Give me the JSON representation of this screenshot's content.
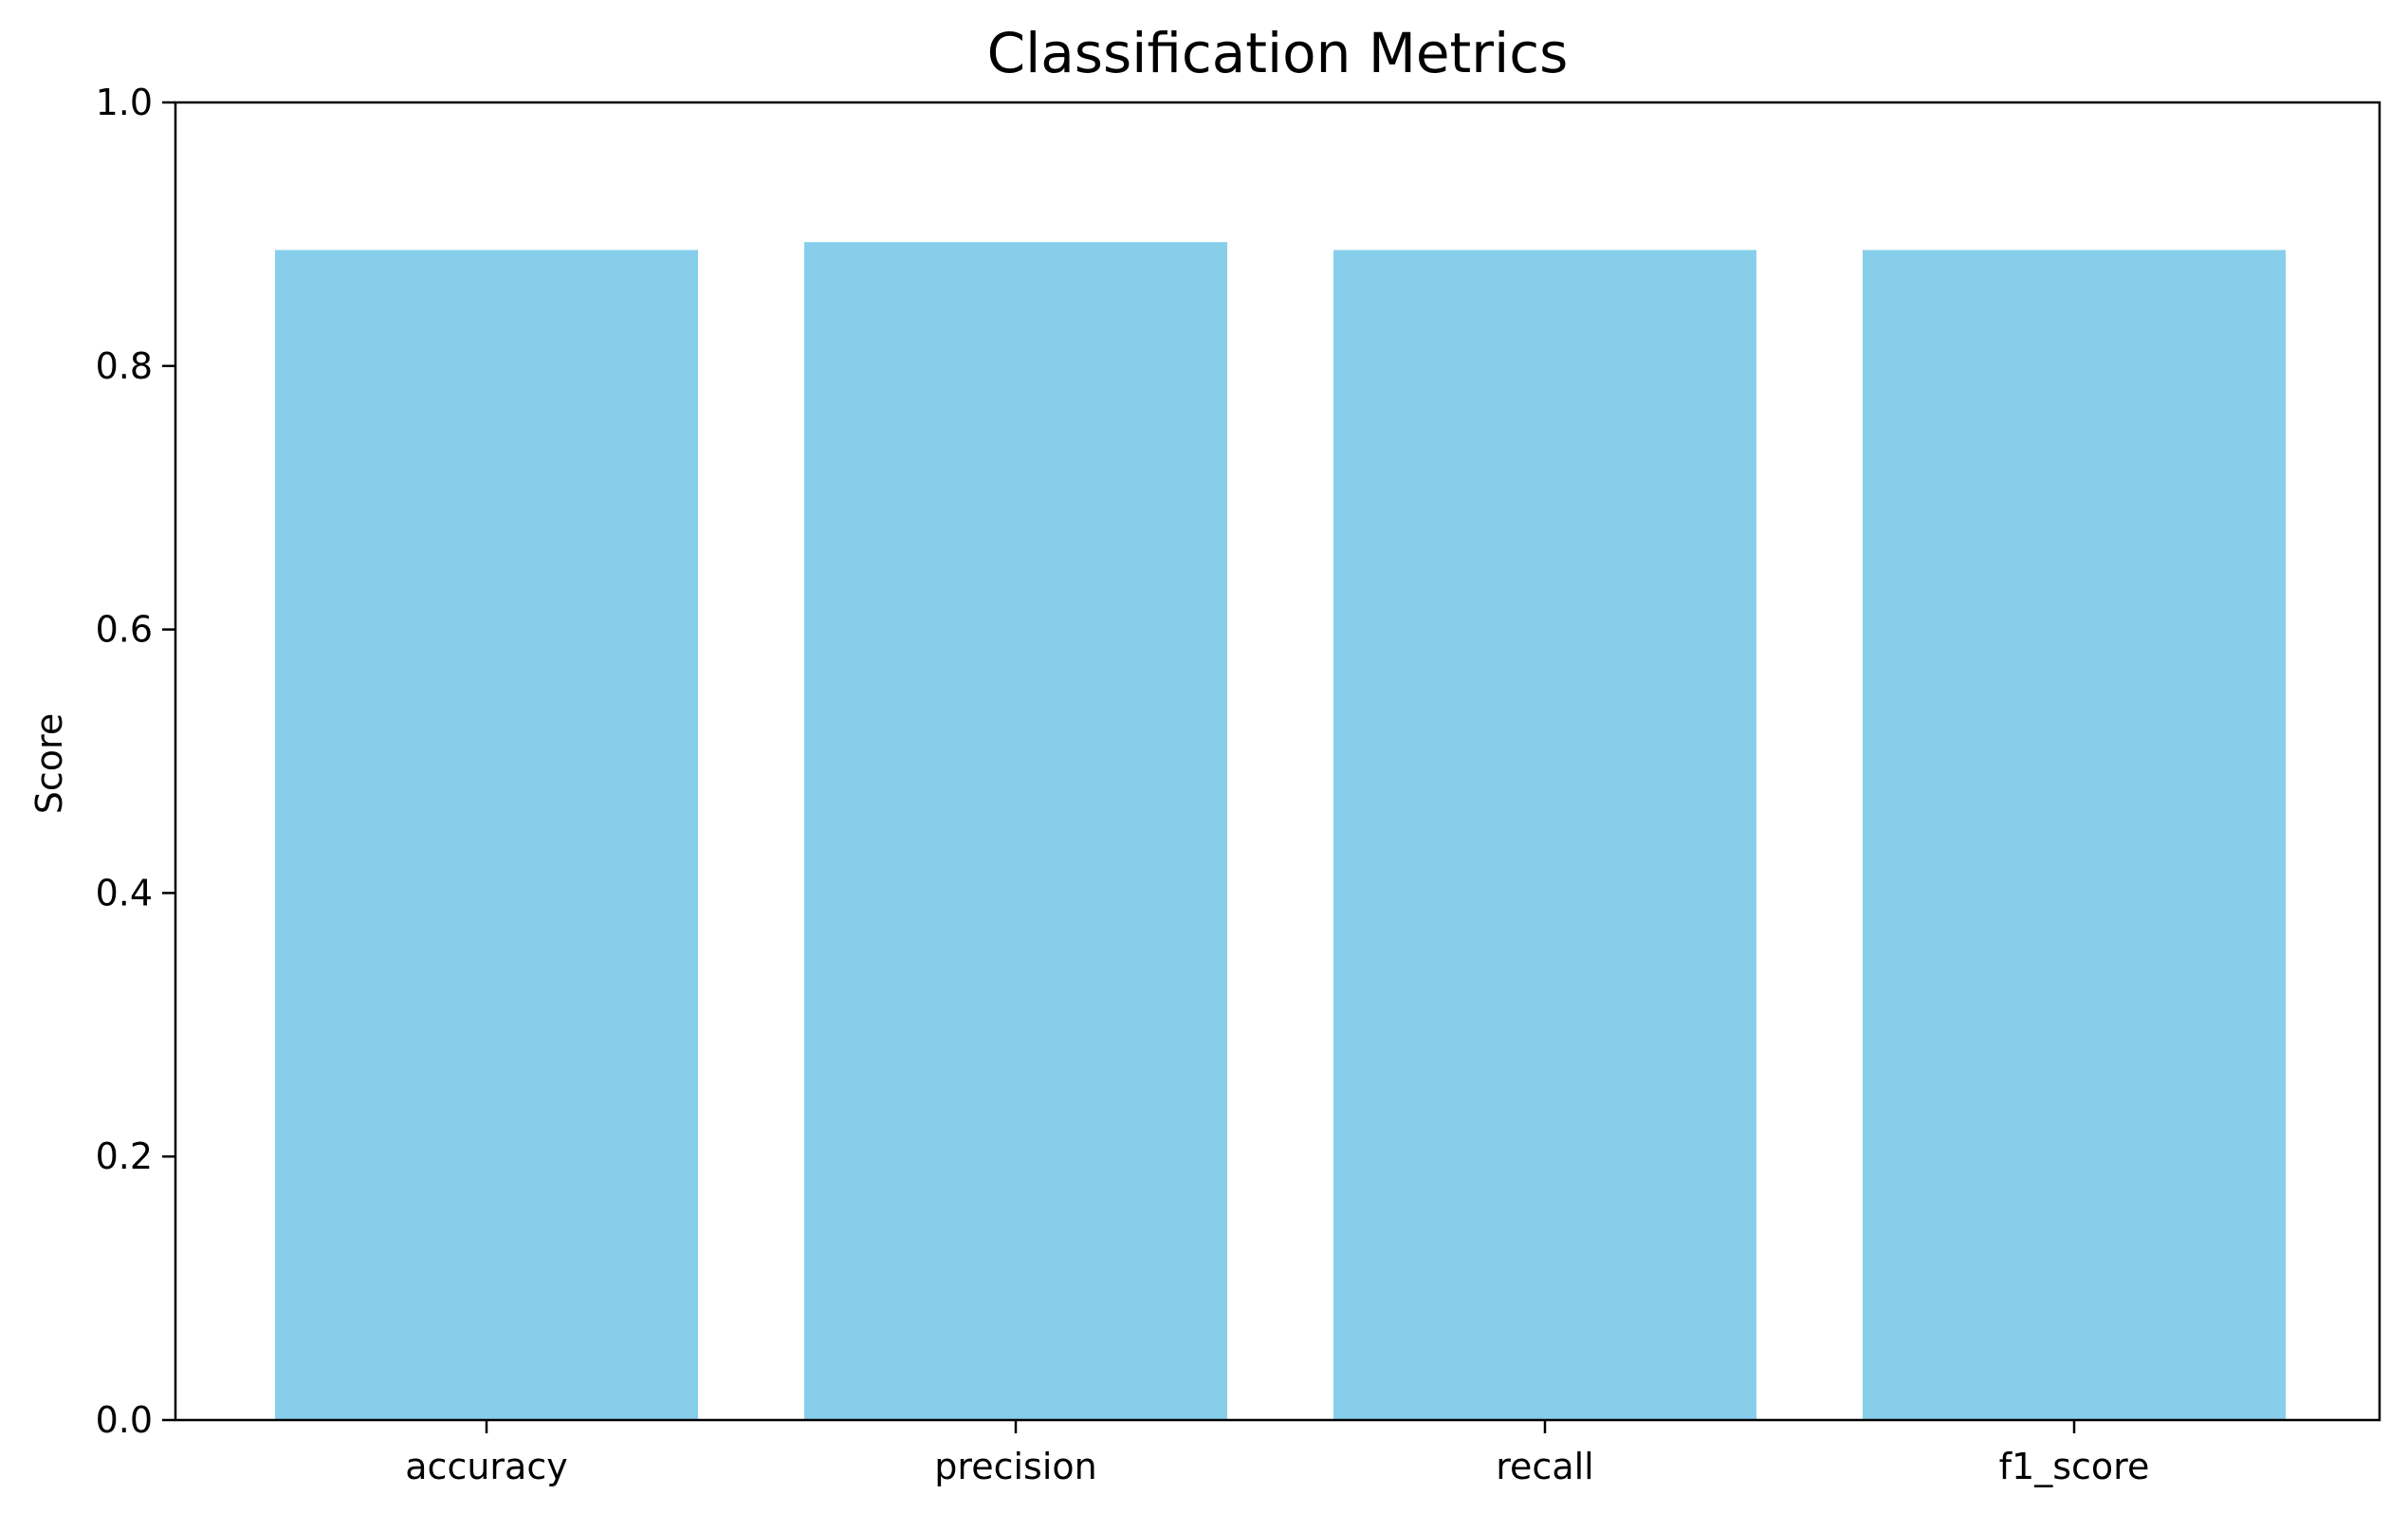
{
  "chart_data": {
    "type": "bar",
    "title": "Classification Metrics",
    "xlabel": "",
    "ylabel": "Score",
    "categories": [
      "accuracy",
      "precision",
      "recall",
      "f1_score"
    ],
    "values": [
      0.888,
      0.894,
      0.888,
      0.888
    ],
    "ylim": [
      0,
      1.0
    ],
    "yticks": [
      "0.0",
      "0.2",
      "0.4",
      "0.6",
      "0.8",
      "1.0"
    ],
    "grid": false,
    "bar_color": "#87CEEB"
  }
}
